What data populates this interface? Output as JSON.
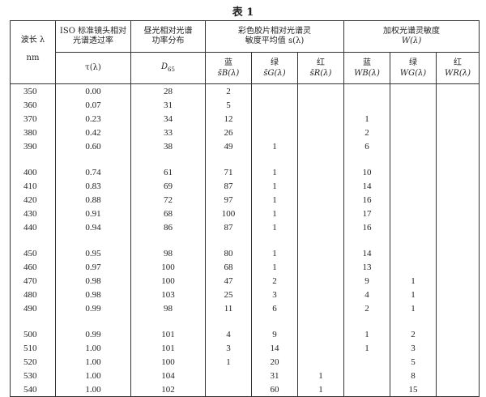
{
  "title": "表 1",
  "headers": {
    "wavelength": "波长 λ",
    "wavelength_unit": "nm",
    "iso_line1": "ISO 标准镜头相对",
    "iso_line2": "光谱透过率",
    "iso_sym": "τ(λ)",
    "d65_line1": "昼光相对光谱",
    "d65_line2": "功率分布",
    "d65_sym": "D65",
    "film_line1": "彩色胶片相对光谱灵",
    "film_line2": "敏度平均值 s(λ)",
    "weighted_line1": "加权光谱灵敏度",
    "weighted_line2": "W(λ)",
    "sub": [
      {
        "color": "蓝",
        "sym": "s̄B(λ)"
      },
      {
        "color": "绿",
        "sym": "s̄G(λ)"
      },
      {
        "color": "红",
        "sym": "s̄R(λ)"
      },
      {
        "color": "蓝",
        "sym": "WB(λ)"
      },
      {
        "color": "绿",
        "sym": "WG(λ)"
      },
      {
        "color": "红",
        "sym": "WR(λ)"
      }
    ]
  },
  "rows": [
    [
      "350",
      "0.00",
      "28",
      "2",
      "",
      "",
      "",
      "",
      ""
    ],
    [
      "360",
      "0.07",
      "31",
      "5",
      "",
      "",
      "",
      "",
      ""
    ],
    [
      "370",
      "0.23",
      "34",
      "12",
      "",
      "",
      "1",
      "",
      ""
    ],
    [
      "380",
      "0.42",
      "33",
      "26",
      "",
      "",
      "2",
      "",
      ""
    ],
    [
      "390",
      "0.60",
      "38",
      "49",
      "1",
      "",
      "6",
      "",
      ""
    ],
    [
      "400",
      "0.74",
      "61",
      "71",
      "1",
      "",
      "10",
      "",
      ""
    ],
    [
      "410",
      "0.83",
      "69",
      "87",
      "1",
      "",
      "14",
      "",
      ""
    ],
    [
      "420",
      "0.88",
      "72",
      "97",
      "1",
      "",
      "16",
      "",
      ""
    ],
    [
      "430",
      "0.91",
      "68",
      "100",
      "1",
      "",
      "17",
      "",
      ""
    ],
    [
      "440",
      "0.94",
      "86",
      "87",
      "1",
      "",
      "16",
      "",
      ""
    ],
    [
      "450",
      "0.95",
      "98",
      "80",
      "1",
      "",
      "14",
      "",
      ""
    ],
    [
      "460",
      "0.97",
      "100",
      "68",
      "1",
      "",
      "13",
      "",
      ""
    ],
    [
      "470",
      "0.98",
      "100",
      "47",
      "2",
      "",
      "9",
      "1",
      ""
    ],
    [
      "480",
      "0.98",
      "103",
      "25",
      "3",
      "",
      "4",
      "1",
      ""
    ],
    [
      "490",
      "0.99",
      "98",
      "11",
      "6",
      "",
      "2",
      "1",
      ""
    ],
    [
      "500",
      "0.99",
      "101",
      "4",
      "9",
      "",
      "1",
      "2",
      ""
    ],
    [
      "510",
      "1.00",
      "101",
      "3",
      "14",
      "",
      "1",
      "3",
      ""
    ],
    [
      "520",
      "1.00",
      "100",
      "1",
      "20",
      "",
      "",
      "5",
      ""
    ],
    [
      "530",
      "1.00",
      "104",
      "",
      "31",
      "1",
      "",
      "8",
      ""
    ],
    [
      "540",
      "1.00",
      "102",
      "",
      "60",
      "1",
      "",
      "15",
      ""
    ]
  ]
}
